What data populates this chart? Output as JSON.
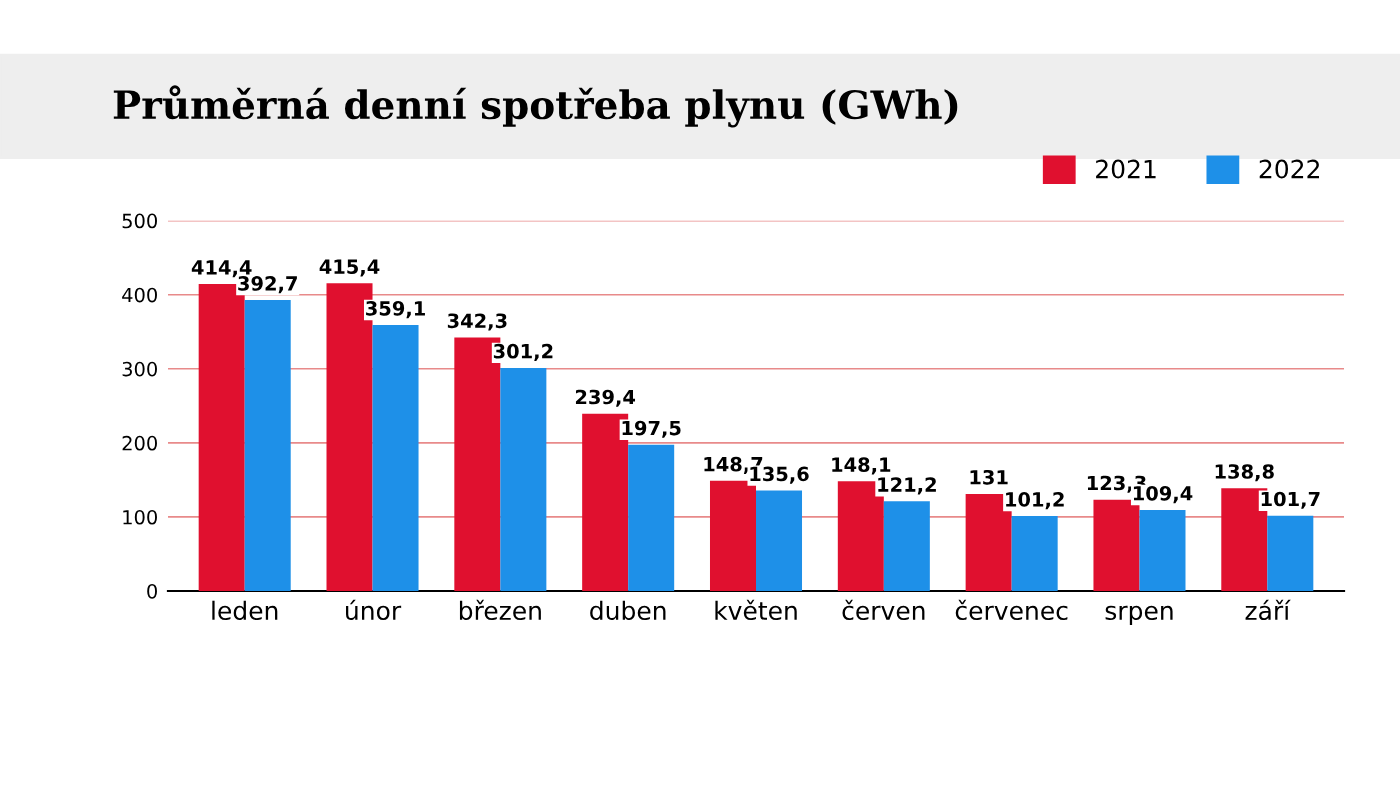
{
  "chart_data": {
    "type": "bar",
    "title": "Průměrná denní spotřeba plynu (GWh)",
    "categories": [
      "leden",
      "únor",
      "březen",
      "duben",
      "květen",
      "červen",
      "červenec",
      "srpen",
      "září"
    ],
    "series": [
      {
        "name": "2021",
        "color": "#e0102f",
        "values": [
          414.4,
          415.4,
          342.3,
          239.4,
          148.7,
          148.1,
          131,
          123.3,
          138.8
        ],
        "value_labels": [
          "414,4",
          "415,4",
          "342,3",
          "239,4",
          "148,7",
          "148,1",
          "131",
          "123,3",
          "138,8"
        ]
      },
      {
        "name": "2022",
        "color": "#1e90e8",
        "values": [
          392.7,
          359.1,
          301.2,
          197.5,
          135.6,
          121.2,
          101.2,
          109.4,
          101.7
        ],
        "value_labels": [
          "392,7",
          "359,1",
          "301,2",
          "197,5",
          "135,6",
          "121,2",
          "101,2",
          "109,4",
          "101,7"
        ]
      }
    ],
    "ylim": [
      0,
      500
    ],
    "yticks": [
      0,
      100,
      200,
      300,
      400,
      500
    ],
    "grid": "y",
    "legend": "top right"
  }
}
